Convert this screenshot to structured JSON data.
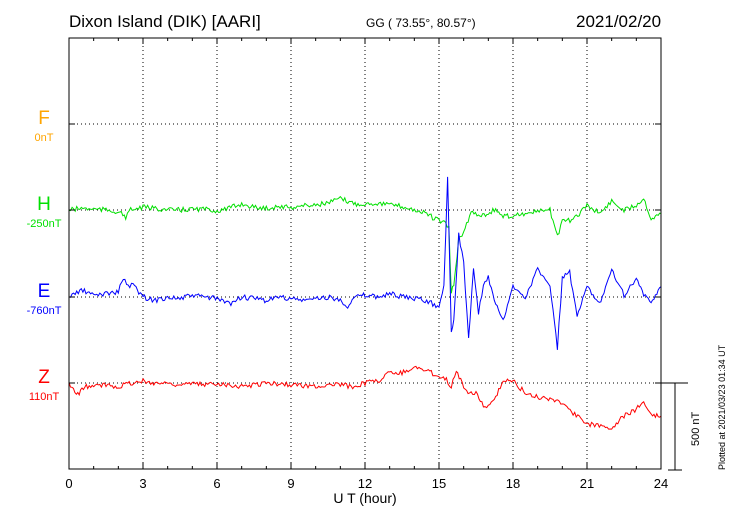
{
  "header": {
    "station": "Dixon Island (DIK)  [AARI]",
    "coords": "GG ( 73.55°,  80.57°)",
    "date": "2021/02/20"
  },
  "footer": {
    "plotted": "Plotted at 2021/03/23 01:34 UT",
    "scale": "500 nT"
  },
  "colors": {
    "F": "#ffa500",
    "H": "#00e000",
    "E": "#0000ff",
    "Z": "#ff0000",
    "grid": "#000000"
  },
  "chart_data": {
    "type": "line",
    "xlabel": "U T (hour)",
    "xlim": [
      0,
      24
    ],
    "xticks": [
      0,
      3,
      6,
      9,
      12,
      15,
      18,
      21,
      24
    ],
    "grid": true,
    "scale_bar_nT": 500,
    "series": [
      {
        "name": "F",
        "baseline_label": "0nT",
        "baseline": 0,
        "x": [],
        "values": []
      },
      {
        "name": "H",
        "baseline_label": "-250nT",
        "baseline": -250,
        "x": [
          0,
          0.5,
          1,
          1.5,
          2,
          2.3,
          2.5,
          3,
          3.5,
          4,
          4.5,
          5,
          5.5,
          6,
          6.5,
          7,
          7.5,
          8,
          8.5,
          9,
          9.5,
          10,
          10.5,
          11,
          11.3,
          11.6,
          12,
          12.5,
          13,
          13.5,
          14,
          14.5,
          14.8,
          15,
          15.2,
          15.4,
          15.5,
          15.6,
          15.8,
          16,
          16.3,
          16.6,
          17,
          17.3,
          17.6,
          18,
          18.5,
          19,
          19.5,
          19.8,
          20,
          20.5,
          21,
          21.5,
          22,
          22.5,
          23,
          23.3,
          23.6,
          24
        ],
        "values": [
          -250,
          -240,
          -245,
          -250,
          -260,
          -290,
          -250,
          -235,
          -240,
          -250,
          -250,
          -245,
          -245,
          -255,
          -240,
          -215,
          -235,
          -240,
          -230,
          -235,
          -225,
          -220,
          -210,
          -185,
          -200,
          -215,
          -215,
          -210,
          -220,
          -230,
          -250,
          -270,
          -300,
          -310,
          -320,
          -360,
          -720,
          -680,
          -420,
          -380,
          -260,
          -280,
          -270,
          -245,
          -290,
          -280,
          -270,
          -260,
          -250,
          -400,
          -320,
          -300,
          -220,
          -270,
          -200,
          -250,
          -220,
          -180,
          -300,
          -270
        ]
      },
      {
        "name": "E",
        "baseline_label": "-760nT",
        "baseline": -760,
        "x": [
          0,
          0.5,
          1,
          1.5,
          2,
          2.2,
          2.4,
          2.6,
          3,
          3.5,
          4,
          4.5,
          5,
          5.5,
          6,
          6.5,
          7,
          7.5,
          8,
          8.5,
          9,
          9.5,
          10,
          10.5,
          11,
          11.3,
          11.6,
          12,
          12.5,
          13,
          13.5,
          14,
          14.5,
          15,
          15.2,
          15.35,
          15.5,
          15.6,
          15.8,
          16,
          16.2,
          16.4,
          16.6,
          16.8,
          17,
          17.3,
          17.6,
          18,
          18.5,
          19,
          19.5,
          19.8,
          20,
          20.3,
          20.6,
          21,
          21.5,
          22,
          22.5,
          23,
          23.3,
          23.6,
          24
        ],
        "values": [
          -760,
          -720,
          -750,
          -740,
          -730,
          -650,
          -700,
          -690,
          -760,
          -780,
          -760,
          -770,
          -750,
          -760,
          -770,
          -800,
          -760,
          -770,
          -780,
          -760,
          -770,
          -780,
          -770,
          -760,
          -780,
          -810,
          -760,
          -750,
          -760,
          -740,
          -760,
          -770,
          -780,
          -820,
          -700,
          -60,
          -950,
          -900,
          -400,
          -560,
          -1000,
          -600,
          -850,
          -700,
          -650,
          -800,
          -900,
          -700,
          -760,
          -600,
          -700,
          -1050,
          -650,
          -620,
          -880,
          -700,
          -800,
          -600,
          -750,
          -650,
          -750,
          -800,
          -700
        ]
      },
      {
        "name": "Z",
        "baseline_label": "110nT",
        "baseline": 110,
        "x": [
          0,
          0.3,
          0.7,
          1,
          1.5,
          2,
          2.2,
          2.5,
          3,
          3.5,
          4,
          4.5,
          5,
          5.5,
          6,
          6.5,
          7,
          7.5,
          8,
          8.5,
          9,
          9.5,
          10,
          10.5,
          11,
          11.5,
          12,
          12.5,
          13,
          13.5,
          14,
          14.5,
          15,
          15.3,
          15.5,
          15.7,
          16,
          16.3,
          16.5,
          16.8,
          17,
          17.3,
          17.6,
          18,
          18.3,
          18.6,
          19,
          19.5,
          20,
          20.5,
          21,
          21.5,
          22,
          22.5,
          23,
          23.3,
          23.6,
          24
        ],
        "values": [
          110,
          40,
          90,
          90,
          100,
          90,
          100,
          110,
          120,
          110,
          110,
          100,
          105,
          100,
          110,
          100,
          90,
          100,
          110,
          105,
          100,
          95,
          90,
          100,
          100,
          90,
          110,
          120,
          170,
          170,
          200,
          180,
          150,
          130,
          90,
          190,
          80,
          50,
          60,
          -20,
          -30,
          20,
          130,
          120,
          80,
          40,
          30,
          20,
          0,
          -70,
          -130,
          -130,
          -150,
          -80,
          -40,
          0,
          -70,
          -80
        ]
      }
    ]
  }
}
